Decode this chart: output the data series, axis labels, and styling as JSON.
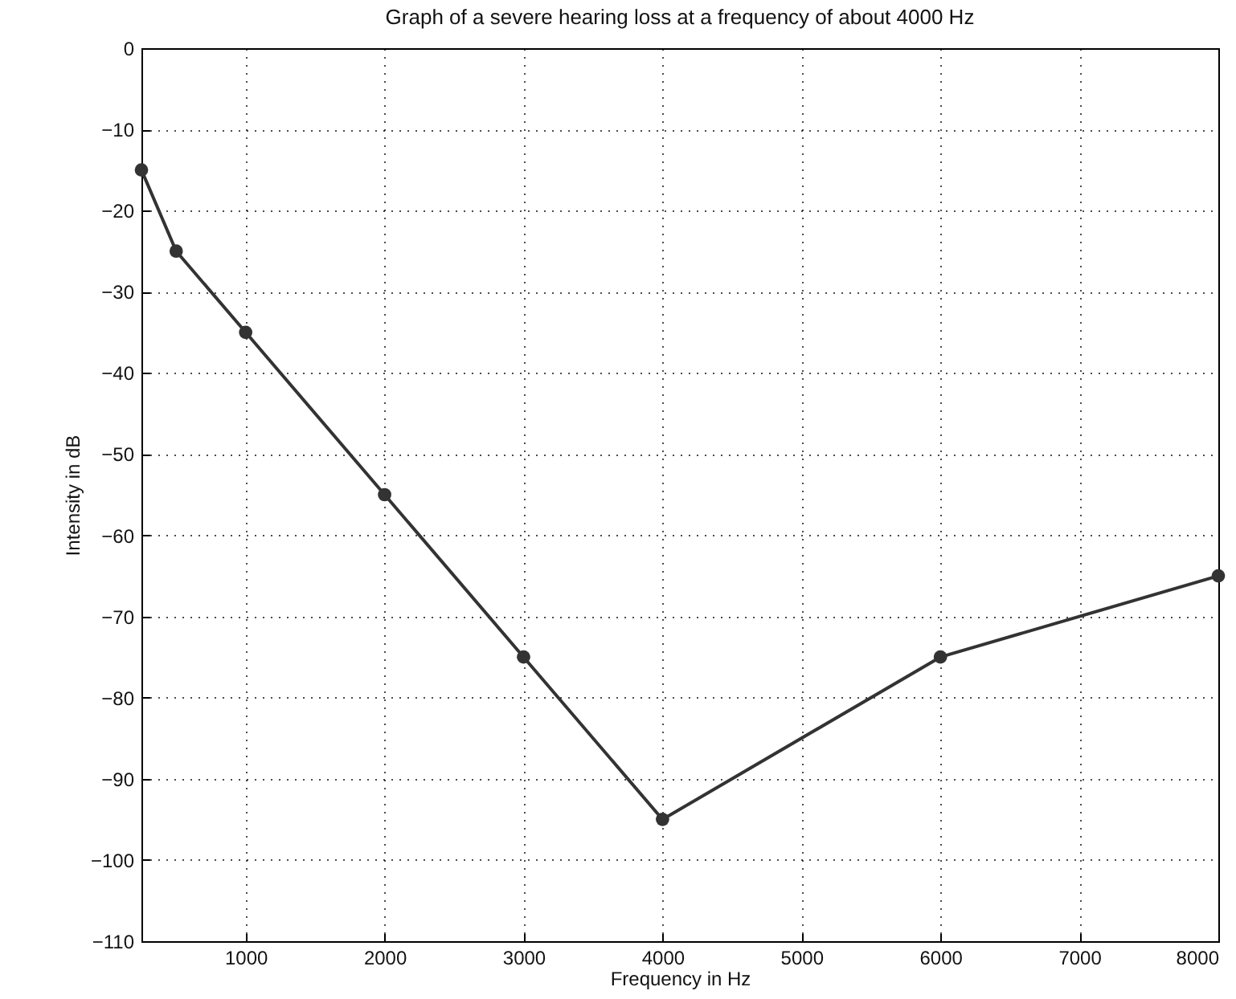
{
  "chart_data": {
    "type": "line",
    "title": "Graph of a severe hearing loss at a frequency of about 4000 Hz",
    "xlabel": "Frequency in Hz",
    "ylabel": "Intensity in dB",
    "x": [
      250,
      500,
      1000,
      2000,
      3000,
      4000,
      6000,
      8000
    ],
    "series": [
      {
        "color": "#333333",
        "values": [
          -15,
          -25,
          -35,
          -55,
          -75,
          -95,
          -75,
          -65
        ]
      }
    ],
    "xlim": [
      250,
      8000
    ],
    "xticks": [
      1000,
      2000,
      3000,
      4000,
      5000,
      6000,
      7000,
      8000
    ],
    "ylim": [
      -110,
      0
    ],
    "yticks": [
      0,
      -10,
      -20,
      -30,
      -40,
      -50,
      -60,
      -70,
      -80,
      -90,
      -100,
      -110
    ],
    "grid": true,
    "marker": "circle",
    "line_style": "solid"
  }
}
